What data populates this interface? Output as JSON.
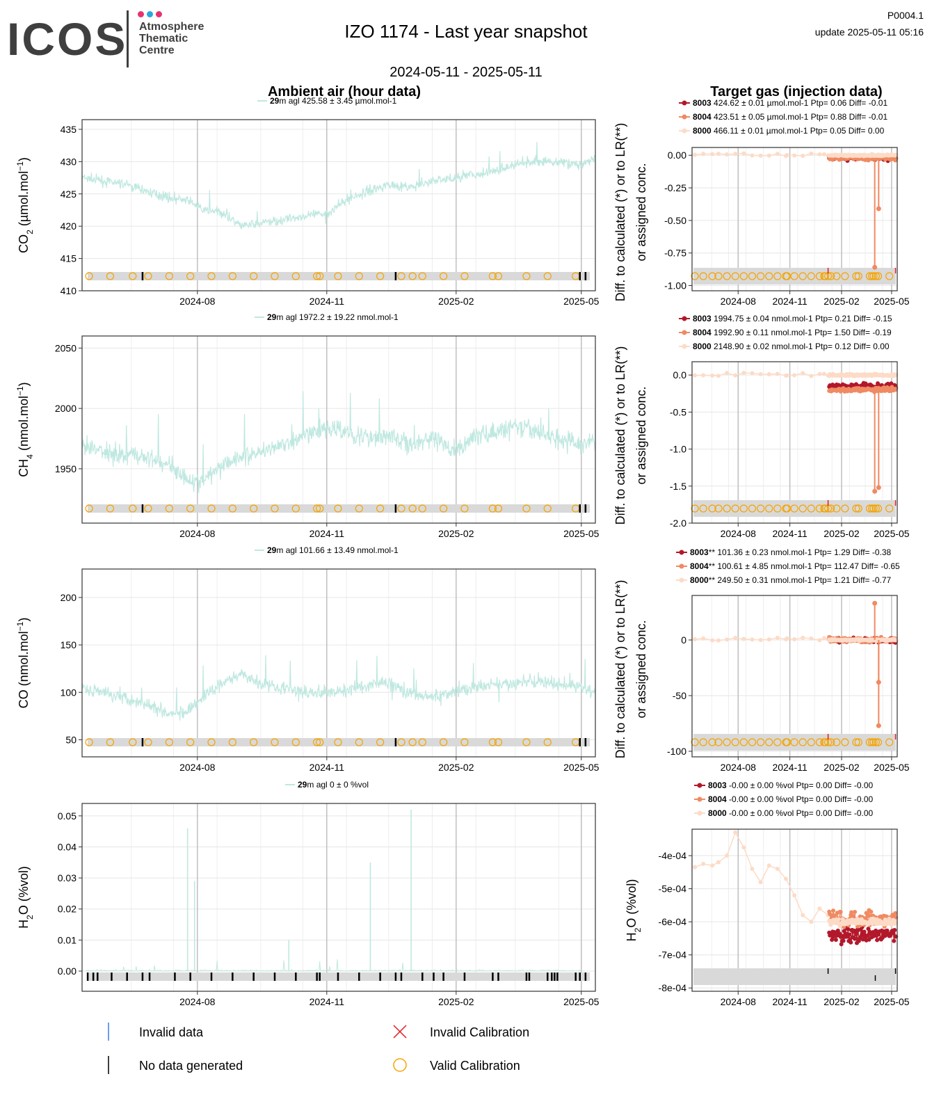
{
  "header": {
    "logo_word": "ICOS",
    "logo_lines": [
      "Atmosphere",
      "Thematic",
      "Centre"
    ],
    "logo_dot_colors": [
      "#e6336e",
      "#2aa8e0",
      "#e6336e"
    ],
    "title": "IZO 1174 - Last year snapshot",
    "date_range": "2024-05-11 - 2025-05-11",
    "plot_code": "P0004.1",
    "update": "update  2025-05-11 05:16"
  },
  "columns": {
    "left_title": "Ambient air (hour data)",
    "right_title": "Target gas (injection data)",
    "right_ylabel_line1": "Diff. to calculated (*) or to LR(**)",
    "right_ylabel_line2": "or assigned conc."
  },
  "colors": {
    "ambient_line": "#bfe8e0",
    "t8003": "#b2182b",
    "t8004": "#ef8a62",
    "t8000": "#fddbc7",
    "valid_calibration": "#f5a400",
    "invalid_calibration": "#e31a1c",
    "invalid_data": "#3b7ddd",
    "no_data": "#000000",
    "band": "#d9d9d9"
  },
  "legend": {
    "invalid_data": "Invalid data",
    "invalid_calibration": "Invalid Calibration",
    "no_data": "No data generated",
    "valid_calibration": "Valid Calibration"
  },
  "chart_data": [
    {
      "type": "line",
      "panel": "CO2 ambient",
      "ylabel": "CO2 (µmol.mol-1)",
      "legend_text": "m agl 425.58 ± 3.45 µmol.mol-1",
      "legend_height": "29",
      "xticks": [
        "2024-08",
        "2024-11",
        "2025-02",
        "2025-05"
      ],
      "yticks": [
        410,
        415,
        420,
        425,
        430,
        435
      ],
      "ylim": [
        410,
        436.5
      ],
      "x_range": [
        "2024-05-11",
        "2025-05-11"
      ],
      "series": [
        {
          "date": [
            "2024-05-11",
            "2024-05-25",
            "2024-06-10",
            "2024-06-25",
            "2024-07-10",
            "2024-07-25",
            "2024-08-05",
            "2024-08-20",
            "2024-09-01",
            "2024-09-15",
            "2024-10-01",
            "2024-10-15",
            "2024-11-01",
            "2024-11-15",
            "2024-12-01",
            "2024-12-15",
            "2025-01-01",
            "2025-01-15",
            "2025-02-01",
            "2025-02-15",
            "2025-03-01",
            "2025-03-15",
            "2025-04-01",
            "2025-04-15",
            "2025-05-01",
            "2025-05-11"
          ],
          "values": [
            427.5,
            427,
            426.5,
            425.5,
            424.5,
            424,
            422.5,
            422,
            420,
            420.5,
            421,
            421.5,
            422,
            424,
            425.5,
            426.5,
            426,
            427,
            427.5,
            428,
            428.5,
            429.5,
            430,
            430,
            429.5,
            430.5
          ]
        }
      ],
      "calibrations": [
        "2024-05-16",
        "2024-05-31",
        "2024-06-16",
        "2024-06-27",
        "2024-07-12",
        "2024-07-27",
        "2024-08-11",
        "2024-08-26",
        "2024-09-10",
        "2024-09-25",
        "2024-10-10",
        "2024-10-25",
        "2024-10-27",
        "2024-11-09",
        "2024-11-24",
        "2024-12-09",
        "2024-12-24",
        "2025-01-01",
        "2025-01-08",
        "2025-01-23",
        "2025-02-07",
        "2025-02-27",
        "2025-03-03",
        "2025-03-23",
        "2025-04-07",
        "2025-04-27"
      ],
      "no_data": [
        "2024-06-23",
        "2024-12-20",
        "2025-04-30",
        "2025-05-04"
      ]
    },
    {
      "type": "line",
      "panel": "CH4 ambient",
      "ylabel": "CH4 (nmol.mol-1)",
      "legend_text": "m agl 1972.2 ± 19.22 nmol.mol-1",
      "legend_height": "29",
      "xticks": [
        "2024-08",
        "2024-11",
        "2025-02",
        "2025-05"
      ],
      "yticks": [
        1950,
        2000,
        2050
      ],
      "ylim": [
        1905,
        2060
      ],
      "x_range": [
        "2024-05-11",
        "2025-05-11"
      ],
      "series": [
        {
          "date": [
            "2024-05-11",
            "2024-05-25",
            "2024-06-10",
            "2024-06-25",
            "2024-07-10",
            "2024-07-25",
            "2024-08-05",
            "2024-08-20",
            "2024-09-01",
            "2024-09-15",
            "2024-10-01",
            "2024-10-15",
            "2024-11-01",
            "2024-11-15",
            "2024-12-01",
            "2024-12-15",
            "2025-01-01",
            "2025-01-15",
            "2025-02-01",
            "2025-02-15",
            "2025-03-01",
            "2025-03-15",
            "2025-04-01",
            "2025-04-15",
            "2025-05-01",
            "2025-05-11"
          ],
          "values": [
            1968,
            1965,
            1962,
            1960,
            1955,
            1942,
            1938,
            1955,
            1960,
            1965,
            1970,
            1975,
            1985,
            1980,
            1975,
            1978,
            1970,
            1975,
            1965,
            1978,
            1980,
            1985,
            1980,
            1975,
            1970,
            1975
          ]
        }
      ],
      "calibrations": [
        "2024-05-16",
        "2024-05-31",
        "2024-06-16",
        "2024-06-27",
        "2024-07-12",
        "2024-07-27",
        "2024-08-11",
        "2024-08-26",
        "2024-09-10",
        "2024-09-25",
        "2024-10-10",
        "2024-10-25",
        "2024-10-27",
        "2024-11-09",
        "2024-11-24",
        "2024-12-09",
        "2024-12-24",
        "2025-01-01",
        "2025-01-08",
        "2025-01-23",
        "2025-02-07",
        "2025-02-27",
        "2025-03-03",
        "2025-03-23",
        "2025-04-07",
        "2025-04-27"
      ],
      "no_data": [
        "2024-06-23",
        "2024-12-20",
        "2025-04-30",
        "2025-05-04"
      ]
    },
    {
      "type": "line",
      "panel": "CO ambient",
      "ylabel": "CO (nmol.mol-1)",
      "legend_text": "m agl 101.66 ± 13.49 nmol.mol-1",
      "legend_height": "29",
      "xticks": [
        "2024-08",
        "2024-11",
        "2025-02",
        "2025-05"
      ],
      "yticks": [
        50,
        100,
        150,
        200
      ],
      "ylim": [
        32,
        230
      ],
      "x_range": [
        "2024-05-11",
        "2025-05-11"
      ],
      "series": [
        {
          "date": [
            "2024-05-11",
            "2024-05-25",
            "2024-06-10",
            "2024-06-25",
            "2024-07-10",
            "2024-07-25",
            "2024-08-05",
            "2024-08-20",
            "2024-09-01",
            "2024-09-15",
            "2024-10-01",
            "2024-10-15",
            "2024-11-01",
            "2024-11-15",
            "2024-12-01",
            "2024-12-15",
            "2025-01-01",
            "2025-01-15",
            "2025-02-01",
            "2025-02-15",
            "2025-03-01",
            "2025-03-15",
            "2025-04-01",
            "2025-04-15",
            "2025-05-01",
            "2025-05-11"
          ],
          "values": [
            105,
            100,
            95,
            88,
            80,
            78,
            95,
            110,
            120,
            110,
            105,
            100,
            100,
            102,
            108,
            110,
            98,
            95,
            100,
            105,
            108,
            110,
            112,
            108,
            105,
            100
          ]
        }
      ],
      "calibrations": [
        "2024-05-16",
        "2024-05-31",
        "2024-06-16",
        "2024-06-27",
        "2024-07-12",
        "2024-07-27",
        "2024-08-11",
        "2024-08-26",
        "2024-09-10",
        "2024-09-25",
        "2024-10-10",
        "2024-10-25",
        "2024-10-27",
        "2024-11-09",
        "2024-11-24",
        "2024-12-09",
        "2024-12-24",
        "2025-01-01",
        "2025-01-08",
        "2025-01-23",
        "2025-02-07",
        "2025-02-27",
        "2025-03-03",
        "2025-03-23",
        "2025-04-07",
        "2025-04-27"
      ],
      "no_data": [
        "2024-06-23",
        "2024-12-20",
        "2025-04-30",
        "2025-05-04"
      ]
    },
    {
      "type": "line",
      "panel": "H2O ambient",
      "ylabel": "H2O (%vol)",
      "legend_text": "m agl 0 ± 0 %vol",
      "legend_height": "29",
      "xticks": [
        "2024-08",
        "2024-11",
        "2025-02",
        "2025-05"
      ],
      "yticks": [
        0.0,
        0.01,
        0.02,
        0.03,
        0.04,
        0.05
      ],
      "ytick_labels": [
        "0.00",
        "0.01",
        "0.02",
        "0.03",
        "0.04",
        "0.05"
      ],
      "ylim": [
        -0.0065,
        0.054
      ],
      "x_range": [
        "2024-05-11",
        "2025-05-11"
      ],
      "spikes": [
        {
          "date": "2024-07-25",
          "value": 0.046
        },
        {
          "date": "2024-07-30",
          "value": 0.029
        },
        {
          "date": "2024-10-05",
          "value": 0.01
        },
        {
          "date": "2024-12-02",
          "value": 0.035
        },
        {
          "date": "2024-12-31",
          "value": 0.052
        }
      ],
      "no_data": [
        "2024-05-15",
        "2024-05-19",
        "2024-05-22",
        "2024-06-01",
        "2024-06-12",
        "2024-06-23",
        "2024-06-28",
        "2024-07-16",
        "2024-07-27",
        "2024-08-11",
        "2024-08-26",
        "2024-09-10",
        "2024-09-25",
        "2024-10-10",
        "2024-10-25",
        "2024-10-27",
        "2024-11-09",
        "2024-11-24",
        "2024-12-09",
        "2024-12-20",
        "2024-12-24",
        "2025-01-08",
        "2025-01-16",
        "2025-01-23",
        "2025-02-07",
        "2025-02-27",
        "2025-03-03",
        "2025-03-23",
        "2025-03-25",
        "2025-04-07",
        "2025-04-10",
        "2025-04-12",
        "2025-04-14",
        "2025-04-27",
        "2025-04-30",
        "2025-05-04"
      ]
    },
    {
      "type": "scatter",
      "panel": "CO2 target",
      "yticks": [
        0.0,
        -0.25,
        -0.5,
        -0.75,
        -1.0
      ],
      "ytick_labels": [
        "0.00",
        "-0.25",
        "-0.50",
        "-0.75",
        "-1.00"
      ],
      "ylim": [
        -1.04,
        0.06
      ],
      "xticks": [
        "2024-08",
        "2024-11",
        "2025-02",
        "2025-05"
      ],
      "legend": [
        {
          "id": "8003",
          "text": " 424.62 ± 0.01 µmol.mol-1  Ptp= 0.06 Diff= -0.01"
        },
        {
          "id": "8004",
          "text": " 423.51 ± 0.05 µmol.mol-1  Ptp= 0.88 Diff= -0.01"
        },
        {
          "id": "8000",
          "text": " 466.11 ± 0.01 µmol.mol-1  Ptp= 0.05 Diff= 0.00"
        }
      ],
      "outliers": [
        {
          "date": "2025-04-01",
          "value": -0.86
        },
        {
          "date": "2025-04-08",
          "value": -0.41
        }
      ],
      "base_values": {
        "8003": -0.02,
        "8004": -0.02,
        "8000": 0.0
      }
    },
    {
      "type": "scatter",
      "panel": "CH4 target",
      "yticks": [
        0.0,
        -0.5,
        -1.0,
        -1.5,
        -2.0
      ],
      "ytick_labels": [
        "0.0",
        "-0.5",
        "-1.0",
        "-1.5",
        "-2.0"
      ],
      "ylim": [
        -2.0,
        0.18
      ],
      "xticks": [
        "2024-08",
        "2024-11",
        "2025-02",
        "2025-05"
      ],
      "legend": [
        {
          "id": "8003",
          "text": " 1994.75 ± 0.04 nmol.mol-1  Ptp= 0.21 Diff= -0.15"
        },
        {
          "id": "8004",
          "text": " 1992.90 ± 0.11 nmol.mol-1  Ptp= 1.50 Diff= -0.19"
        },
        {
          "id": "8000",
          "text": " 2148.90 ± 0.02 nmol.mol-1  Ptp= 0.12 Diff= 0.00"
        }
      ],
      "outliers": [
        {
          "date": "2025-04-01",
          "value": -1.57
        },
        {
          "date": "2025-04-08",
          "value": -1.52
        }
      ],
      "base_values": {
        "8003": -0.15,
        "8004": -0.2,
        "8000": 0.0
      }
    },
    {
      "type": "scatter",
      "panel": "CO target",
      "yticks": [
        0,
        -50,
        -100
      ],
      "ytick_labels": [
        "0",
        "-50",
        "-100"
      ],
      "ylim": [
        -105,
        40
      ],
      "xticks": [
        "2024-08",
        "2024-11",
        "2025-02",
        "2025-05"
      ],
      "legend": [
        {
          "id": "8003",
          "suffix": "**",
          "text": " 101.36 ± 0.23 nmol.mol-1  Ptp= 1.29 Diff= -0.38"
        },
        {
          "id": "8004",
          "suffix": "**",
          "text": " 100.61 ± 4.85 nmol.mol-1  Ptp= 112.47 Diff= -0.65"
        },
        {
          "id": "8000",
          "suffix": "**",
          "text": " 249.50 ± 0.31 nmol.mol-1  Ptp= 1.21 Diff= -0.77"
        }
      ],
      "outliers": [
        {
          "date": "2025-04-01",
          "value": 33
        },
        {
          "date": "2025-04-08",
          "value": -77
        },
        {
          "date": "2025-04-08",
          "value": -38
        }
      ],
      "base_values": {
        "8003": 0,
        "8004": 0,
        "8000": 0
      }
    },
    {
      "type": "scatter",
      "panel": "H2O target",
      "ylabel": "H2O (%vol)",
      "yticks": [
        -0.0004,
        -0.0005,
        -0.0006,
        -0.0007,
        -0.0008
      ],
      "ytick_labels": [
        "-4e-04",
        "-5e-04",
        "-6e-04",
        "-7e-04",
        "-8e-04"
      ],
      "ylim": [
        -0.00081,
        -0.00032
      ],
      "xticks": [
        "2024-08",
        "2024-11",
        "2025-02",
        "2025-05"
      ],
      "legend": [
        {
          "id": "8003",
          "text": " -0.00 ± 0.00 %vol Ptp= 0.00 Diff= -0.00"
        },
        {
          "id": "8004",
          "text": " -0.00 ± 0.00 %vol Ptp= 0.00 Diff= -0.00"
        },
        {
          "id": "8000",
          "text": " -0.00 ± 0.00 %vol Ptp= 0.00 Diff= -0.00"
        }
      ],
      "t8000_line": {
        "date": [
          "2024-05-16",
          "2024-05-31",
          "2024-06-16",
          "2024-06-27",
          "2024-07-12",
          "2024-07-27",
          "2024-08-11",
          "2024-08-26",
          "2024-09-10",
          "2024-09-25",
          "2024-10-10",
          "2024-10-25",
          "2024-11-09",
          "2024-11-24",
          "2024-12-09",
          "2024-12-24",
          "2025-01-08"
        ],
        "values": [
          -0.000435,
          -0.000425,
          -0.00043,
          -0.00042,
          -0.0004,
          -0.00033,
          -0.000375,
          -0.00044,
          -0.00048,
          -0.00043,
          -0.00044,
          -0.00047,
          -0.00052,
          -0.00058,
          -0.0006,
          -0.00056,
          -0.00058
        ]
      },
      "base_values": {
        "8003": -0.00064,
        "8004": -0.00059,
        "8000": -0.0006
      }
    }
  ]
}
